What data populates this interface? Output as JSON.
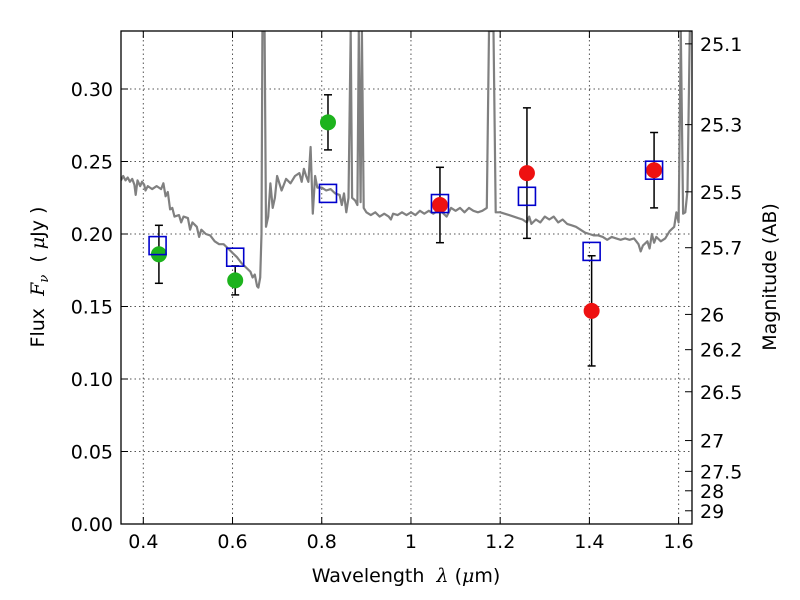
{
  "chart_data": {
    "type": "scatter",
    "title": "",
    "xlabel": {
      "prefix": "Wavelength  ",
      "symbol": "λ",
      "unit_open": " (",
      "unit_mu": "μ",
      "unit_rest": "m)"
    },
    "ylabel": {
      "prefix": "Flux  ",
      "symbol": "F",
      "sub": "ν",
      "unit_open": "  ( ",
      "unit_mu": "μ",
      "unit_rest": "Jy )"
    },
    "y2label": "Magnitude (AB)",
    "xlim": [
      0.35,
      1.63
    ],
    "ylim": [
      0.0,
      0.34
    ],
    "grid": true,
    "x_ticks": [
      0.4,
      0.6,
      0.8,
      1.0,
      1.2,
      1.4,
      1.6
    ],
    "x_tick_labels": [
      "0.4",
      "0.6",
      "0.8",
      "1",
      "1.2",
      "1.4",
      "1.6"
    ],
    "y_ticks": [
      0.0,
      0.05,
      0.1,
      0.15,
      0.2,
      0.25,
      0.3
    ],
    "y_tick_labels": [
      "0.00",
      "0.05",
      "0.10",
      "0.15",
      "0.20",
      "0.25",
      "0.30"
    ],
    "mag_ticks": [
      {
        "mag": 25.1,
        "label": "25.1"
      },
      {
        "mag": 25.3,
        "label": "25.3"
      },
      {
        "mag": 25.5,
        "label": "25.5"
      },
      {
        "mag": 25.7,
        "label": "25.7"
      },
      {
        "mag": 26.0,
        "label": "26"
      },
      {
        "mag": 26.2,
        "label": "26.2"
      },
      {
        "mag": 26.5,
        "label": "26.5"
      },
      {
        "mag": 27.0,
        "label": "27"
      },
      {
        "mag": 27.5,
        "label": "27.5"
      },
      {
        "mag": 28.0,
        "label": "28"
      },
      {
        "mag": 29.0,
        "label": "29"
      }
    ],
    "colors": {
      "model": "#808080",
      "green": "#1db31d",
      "red": "#ee1111",
      "square": "#0000cc",
      "error": "#000000",
      "grid": "#555555"
    },
    "model_spectrum": [
      [
        0.35,
        0.237
      ],
      [
        0.355,
        0.24
      ],
      [
        0.36,
        0.237
      ],
      [
        0.365,
        0.239
      ],
      [
        0.37,
        0.236
      ],
      [
        0.375,
        0.238
      ],
      [
        0.38,
        0.234
      ],
      [
        0.383,
        0.227
      ],
      [
        0.387,
        0.237
      ],
      [
        0.393,
        0.233
      ],
      [
        0.397,
        0.236
      ],
      [
        0.402,
        0.234
      ],
      [
        0.405,
        0.23
      ],
      [
        0.41,
        0.233
      ],
      [
        0.42,
        0.231
      ],
      [
        0.43,
        0.233
      ],
      [
        0.44,
        0.231
      ],
      [
        0.445,
        0.235
      ],
      [
        0.45,
        0.226
      ],
      [
        0.455,
        0.229
      ],
      [
        0.46,
        0.217
      ],
      [
        0.465,
        0.218
      ],
      [
        0.47,
        0.212
      ],
      [
        0.48,
        0.213
      ],
      [
        0.485,
        0.208
      ],
      [
        0.49,
        0.212
      ],
      [
        0.5,
        0.211
      ],
      [
        0.505,
        0.203
      ],
      [
        0.51,
        0.208
      ],
      [
        0.52,
        0.205
      ],
      [
        0.525,
        0.198
      ],
      [
        0.53,
        0.203
      ],
      [
        0.54,
        0.2
      ],
      [
        0.55,
        0.199
      ],
      [
        0.56,
        0.195
      ],
      [
        0.57,
        0.193
      ],
      [
        0.58,
        0.193
      ],
      [
        0.59,
        0.19
      ],
      [
        0.6,
        0.187
      ],
      [
        0.61,
        0.184
      ],
      [
        0.62,
        0.18
      ],
      [
        0.63,
        0.177
      ],
      [
        0.64,
        0.174
      ],
      [
        0.645,
        0.17
      ],
      [
        0.65,
        0.172
      ],
      [
        0.655,
        0.164
      ],
      [
        0.658,
        0.163
      ],
      [
        0.662,
        0.17
      ],
      [
        0.665,
        0.2
      ],
      [
        0.667,
        0.34
      ],
      [
        0.672,
        0.34
      ],
      [
        0.675,
        0.205
      ],
      [
        0.68,
        0.212
      ],
      [
        0.685,
        0.235
      ],
      [
        0.69,
        0.218
      ],
      [
        0.695,
        0.225
      ],
      [
        0.7,
        0.24
      ],
      [
        0.71,
        0.23
      ],
      [
        0.72,
        0.238
      ],
      [
        0.73,
        0.235
      ],
      [
        0.74,
        0.24
      ],
      [
        0.75,
        0.242
      ],
      [
        0.755,
        0.236
      ],
      [
        0.76,
        0.245
      ],
      [
        0.765,
        0.24
      ],
      [
        0.77,
        0.236
      ],
      [
        0.775,
        0.26
      ],
      [
        0.78,
        0.214
      ],
      [
        0.785,
        0.24
      ],
      [
        0.79,
        0.232
      ],
      [
        0.8,
        0.232
      ],
      [
        0.81,
        0.23
      ],
      [
        0.82,
        0.231
      ],
      [
        0.83,
        0.228
      ],
      [
        0.84,
        0.227
      ],
      [
        0.845,
        0.22
      ],
      [
        0.85,
        0.228
      ],
      [
        0.855,
        0.215
      ],
      [
        0.86,
        0.225
      ],
      [
        0.865,
        0.34
      ],
      [
        0.868,
        0.225
      ],
      [
        0.875,
        0.223
      ],
      [
        0.88,
        0.22
      ],
      [
        0.883,
        0.34
      ],
      [
        0.887,
        0.222
      ],
      [
        0.89,
        0.34
      ],
      [
        0.894,
        0.218
      ],
      [
        0.9,
        0.215
      ],
      [
        0.91,
        0.213
      ],
      [
        0.92,
        0.215
      ],
      [
        0.93,
        0.212
      ],
      [
        0.94,
        0.214
      ],
      [
        0.95,
        0.212
      ],
      [
        0.955,
        0.21
      ],
      [
        0.96,
        0.214
      ],
      [
        0.97,
        0.213
      ],
      [
        0.98,
        0.215
      ],
      [
        0.99,
        0.213
      ],
      [
        1.0,
        0.215
      ],
      [
        1.01,
        0.213
      ],
      [
        1.02,
        0.216
      ],
      [
        1.03,
        0.214
      ],
      [
        1.04,
        0.216
      ],
      [
        1.05,
        0.214
      ],
      [
        1.06,
        0.216
      ],
      [
        1.07,
        0.215
      ],
      [
        1.08,
        0.212
      ],
      [
        1.09,
        0.218
      ],
      [
        1.1,
        0.216
      ],
      [
        1.11,
        0.218
      ],
      [
        1.12,
        0.215
      ],
      [
        1.13,
        0.218
      ],
      [
        1.14,
        0.216
      ],
      [
        1.15,
        0.215
      ],
      [
        1.16,
        0.216
      ],
      [
        1.17,
        0.218
      ],
      [
        1.175,
        0.34
      ],
      [
        1.18,
        0.34
      ],
      [
        1.185,
        0.34
      ],
      [
        1.19,
        0.215
      ],
      [
        1.2,
        0.215
      ],
      [
        1.21,
        0.214
      ],
      [
        1.22,
        0.213
      ],
      [
        1.23,
        0.212
      ],
      [
        1.24,
        0.211
      ],
      [
        1.25,
        0.21
      ],
      [
        1.26,
        0.208
      ],
      [
        1.265,
        0.212
      ],
      [
        1.27,
        0.207
      ],
      [
        1.28,
        0.21
      ],
      [
        1.29,
        0.208
      ],
      [
        1.3,
        0.212
      ],
      [
        1.31,
        0.21
      ],
      [
        1.32,
        0.212
      ],
      [
        1.33,
        0.208
      ],
      [
        1.34,
        0.21
      ],
      [
        1.35,
        0.207
      ],
      [
        1.36,
        0.206
      ],
      [
        1.37,
        0.205
      ],
      [
        1.38,
        0.203
      ],
      [
        1.39,
        0.201
      ],
      [
        1.4,
        0.2
      ],
      [
        1.41,
        0.199
      ],
      [
        1.42,
        0.199
      ],
      [
        1.43,
        0.198
      ],
      [
        1.44,
        0.196
      ],
      [
        1.45,
        0.198
      ],
      [
        1.46,
        0.197
      ],
      [
        1.47,
        0.196
      ],
      [
        1.48,
        0.197
      ],
      [
        1.49,
        0.196
      ],
      [
        1.5,
        0.197
      ],
      [
        1.51,
        0.193
      ],
      [
        1.515,
        0.188
      ],
      [
        1.52,
        0.192
      ],
      [
        1.53,
        0.195
      ],
      [
        1.535,
        0.19
      ],
      [
        1.54,
        0.2
      ],
      [
        1.545,
        0.194
      ],
      [
        1.55,
        0.198
      ],
      [
        1.56,
        0.195
      ],
      [
        1.57,
        0.197
      ],
      [
        1.58,
        0.202
      ],
      [
        1.59,
        0.205
      ],
      [
        1.595,
        0.215
      ],
      [
        1.6,
        0.208
      ],
      [
        1.605,
        0.34
      ],
      [
        1.61,
        0.214
      ],
      [
        1.615,
        0.215
      ],
      [
        1.62,
        0.23
      ],
      [
        1.625,
        0.34
      ],
      [
        1.63,
        0.34
      ]
    ],
    "observed": [
      {
        "x": 0.435,
        "y": 0.186,
        "err": 0.02,
        "color": "green"
      },
      {
        "x": 0.606,
        "y": 0.168,
        "err": 0.01,
        "color": "green"
      },
      {
        "x": 0.814,
        "y": 0.277,
        "err": 0.019,
        "color": "green"
      },
      {
        "x": 1.065,
        "y": 0.22,
        "err": 0.026,
        "color": "red"
      },
      {
        "x": 1.26,
        "y": 0.242,
        "err": 0.045,
        "color": "red"
      },
      {
        "x": 1.405,
        "y": 0.147,
        "err": 0.038,
        "color": "red"
      },
      {
        "x": 1.545,
        "y": 0.244,
        "err": 0.026,
        "color": "red"
      }
    ],
    "model_photometry": [
      {
        "x": 0.432,
        "y": 0.192
      },
      {
        "x": 0.606,
        "y": 0.184
      },
      {
        "x": 0.814,
        "y": 0.228
      },
      {
        "x": 1.065,
        "y": 0.221
      },
      {
        "x": 1.26,
        "y": 0.226
      },
      {
        "x": 1.405,
        "y": 0.188
      },
      {
        "x": 1.545,
        "y": 0.244
      }
    ]
  }
}
